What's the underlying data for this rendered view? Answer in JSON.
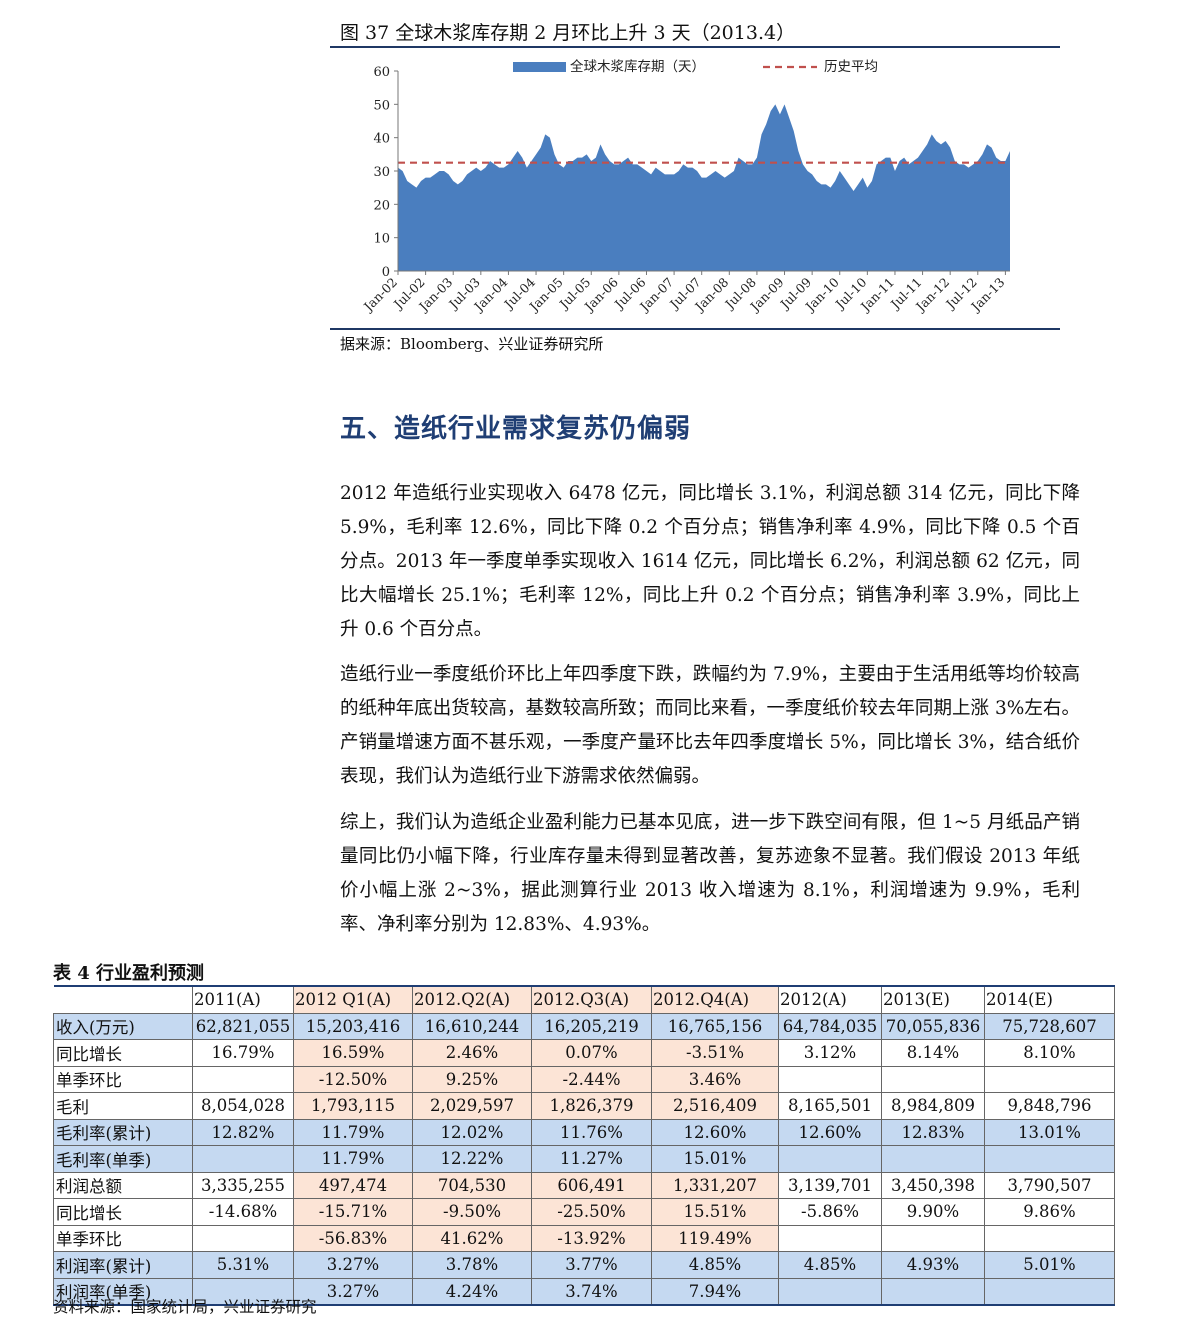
{
  "figure": {
    "title": "图 37  全球木浆库存期 2 月环比上升 3 天（2013.4）",
    "source": "据来源：Bloomberg、兴业证券研究所"
  },
  "chart_data": {
    "type": "area",
    "title": "图 37  全球木浆库存期 2 月环比上升 3 天（2013.4）",
    "legend": [
      "全球木浆库存期（天）",
      "历史平均"
    ],
    "legend_position": "top",
    "ylim": [
      0,
      60
    ],
    "yticks": [
      0,
      10,
      20,
      30,
      40,
      50,
      60
    ],
    "xtick_labels": [
      "Jan-02",
      "Jul-02",
      "Jan-03",
      "Jul-03",
      "Jan-04",
      "Jul-04",
      "Jan-05",
      "Jul-05",
      "Jan-06",
      "Jul-06",
      "Jan-07",
      "Jul-07",
      "Jan-08",
      "Jul-08",
      "Jan-09",
      "Jul-09",
      "Jan-10",
      "Jul-10",
      "Jan-11",
      "Jul-11",
      "Jan-12",
      "Jul-12",
      "Jan-13"
    ],
    "grid": false,
    "colors": {
      "area": "#4a7ebf",
      "average": "#c0504d"
    },
    "series": [
      {
        "name": "全球木浆库存期（天）",
        "x": [
          "2002-01",
          "2002-02",
          "2002-03",
          "2002-04",
          "2002-05",
          "2002-06",
          "2002-07",
          "2002-08",
          "2002-09",
          "2002-10",
          "2002-11",
          "2002-12",
          "2003-01",
          "2003-02",
          "2003-03",
          "2003-04",
          "2003-05",
          "2003-06",
          "2003-07",
          "2003-08",
          "2003-09",
          "2003-10",
          "2003-11",
          "2003-12",
          "2004-01",
          "2004-02",
          "2004-03",
          "2004-04",
          "2004-05",
          "2004-06",
          "2004-07",
          "2004-08",
          "2004-09",
          "2004-10",
          "2004-11",
          "2004-12",
          "2005-01",
          "2005-02",
          "2005-03",
          "2005-04",
          "2005-05",
          "2005-06",
          "2005-07",
          "2005-08",
          "2005-09",
          "2005-10",
          "2005-11",
          "2005-12",
          "2006-01",
          "2006-02",
          "2006-03",
          "2006-04",
          "2006-05",
          "2006-06",
          "2006-07",
          "2006-08",
          "2006-09",
          "2006-10",
          "2006-11",
          "2006-12",
          "2007-01",
          "2007-02",
          "2007-03",
          "2007-04",
          "2007-05",
          "2007-06",
          "2007-07",
          "2007-08",
          "2007-09",
          "2007-10",
          "2007-11",
          "2007-12",
          "2008-01",
          "2008-02",
          "2008-03",
          "2008-04",
          "2008-05",
          "2008-06",
          "2008-07",
          "2008-08",
          "2008-09",
          "2008-10",
          "2008-11",
          "2008-12",
          "2009-01",
          "2009-02",
          "2009-03",
          "2009-04",
          "2009-05",
          "2009-06",
          "2009-07",
          "2009-08",
          "2009-09",
          "2009-10",
          "2009-11",
          "2009-12",
          "2010-01",
          "2010-02",
          "2010-03",
          "2010-04",
          "2010-05",
          "2010-06",
          "2010-07",
          "2010-08",
          "2010-09",
          "2010-10",
          "2010-11",
          "2010-12",
          "2011-01",
          "2011-02",
          "2011-03",
          "2011-04",
          "2011-05",
          "2011-06",
          "2011-07",
          "2011-08",
          "2011-09",
          "2011-10",
          "2011-11",
          "2011-12",
          "2012-01",
          "2012-02",
          "2012-03",
          "2012-04",
          "2012-05",
          "2012-06",
          "2012-07",
          "2012-08",
          "2012-09",
          "2012-10",
          "2012-11",
          "2012-12",
          "2013-01",
          "2013-02"
        ],
        "values": [
          31,
          30,
          27,
          26,
          25,
          27,
          28,
          28,
          29,
          30,
          30,
          29,
          27,
          26,
          27,
          29,
          30,
          31,
          30,
          31,
          33,
          32,
          31,
          31,
          32,
          34,
          36,
          34,
          31,
          33,
          35,
          37,
          41,
          40,
          35,
          32,
          31,
          33,
          33,
          34,
          34,
          35,
          33,
          34,
          38,
          35,
          33,
          32,
          32,
          33,
          34,
          32,
          32,
          31,
          30,
          29,
          31,
          30,
          29,
          29,
          29,
          30,
          32,
          31,
          31,
          30,
          28,
          28,
          29,
          30,
          29,
          28,
          29,
          30,
          34,
          33,
          32,
          32,
          34,
          41,
          44,
          48,
          50,
          47,
          50,
          46,
          42,
          36,
          32,
          30,
          29,
          27,
          26,
          26,
          25,
          27,
          30,
          28,
          26,
          24,
          26,
          28,
          25,
          27,
          32,
          33,
          34,
          34,
          30,
          33,
          34,
          32,
          33,
          34,
          36,
          38,
          41,
          39,
          38,
          39,
          37,
          33,
          32,
          32,
          31,
          32,
          33,
          35,
          38,
          37,
          34,
          33,
          33,
          36
        ]
      },
      {
        "name": "历史平均",
        "value": 32.5
      }
    ]
  },
  "section": {
    "heading": "五、造纸行业需求复苏仍偏弱",
    "paragraphs": [
      "2012 年造纸行业实现收入 6478 亿元，同比增长 3.1%，利润总额 314 亿元，同比下降 5.9%，毛利率 12.6%，同比下降 0.2 个百分点；销售净利率 4.9%，同比下降 0.5 个百分点。2013 年一季度单季实现收入 1614 亿元，同比增长 6.2%，利润总额 62 亿元，同比大幅增长 25.1%；毛利率 12%，同比上升 0.2 个百分点；销售净利率 3.9%，同比上升 0.6 个百分点。",
      "造纸行业一季度纸价环比上年四季度下跌，跌幅约为 7.9%，主要由于生活用纸等均价较高的纸种年底出货较高，基数较高所致；而同比来看，一季度纸价较去年同期上涨 3%左右。产销量增速方面不甚乐观，一季度产量环比去年四季度增长 5%，同比增长 3%，结合纸价表现，我们认为造纸行业下游需求依然偏弱。",
      "综上，我们认为造纸企业盈利能力已基本见底，进一步下跌空间有限，但 1~5 月纸品产销量同比仍小幅下降，行业库存量未得到显著改善，复苏迹象不显著。我们假设 2013 年纸价小幅上涨 2~3%，据此测算行业 2013 收入增速为 8.1%，利润增速为 9.9%，毛利率、净利率分别为 12.83%、4.93%。"
    ]
  },
  "table": {
    "title": "表 4  行业盈利预测",
    "source": "资料来源：国家统计局，兴业证券研究",
    "headers": [
      "",
      "2011(A)",
      "2012 Q1(A)",
      "2012.Q2(A)",
      "2012.Q3(A)",
      "2012.Q4(A)",
      "2012(A)",
      "2013(E)",
      "2014(E)"
    ],
    "rows": [
      {
        "blue": true,
        "cells": [
          "收入(万元)",
          "62,821,055",
          "15,203,416",
          "16,610,244",
          "16,205,219",
          "16,765,156",
          "64,784,035",
          "70,055,836",
          "75,728,607"
        ]
      },
      {
        "blue": false,
        "cells": [
          "同比增长",
          "16.79%",
          "16.59%",
          "2.46%",
          "0.07%",
          "-3.51%",
          "3.12%",
          "8.14%",
          "8.10%"
        ]
      },
      {
        "blue": false,
        "cells": [
          "单季环比",
          "",
          "-12.50%",
          "9.25%",
          "-2.44%",
          "3.46%",
          "",
          "",
          ""
        ]
      },
      {
        "blue": false,
        "cells": [
          "毛利",
          "8,054,028",
          "1,793,115",
          "2,029,597",
          "1,826,379",
          "2,516,409",
          "8,165,501",
          "8,984,809",
          "9,848,796"
        ]
      },
      {
        "blue": true,
        "cells": [
          "毛利率(累计)",
          "12.82%",
          "11.79%",
          "12.02%",
          "11.76%",
          "12.60%",
          "12.60%",
          "12.83%",
          "13.01%"
        ]
      },
      {
        "blue": true,
        "cells": [
          "毛利率(单季)",
          "",
          "11.79%",
          "12.22%",
          "11.27%",
          "15.01%",
          "",
          "",
          ""
        ]
      },
      {
        "blue": false,
        "cells": [
          "利润总额",
          "3,335,255",
          "497,474",
          "704,530",
          "606,491",
          "1,331,207",
          "3,139,701",
          "3,450,398",
          "3,790,507"
        ]
      },
      {
        "blue": false,
        "cells": [
          "同比增长",
          "-14.68%",
          "-15.71%",
          "-9.50%",
          "-25.50%",
          "15.51%",
          "-5.86%",
          "9.90%",
          "9.86%"
        ]
      },
      {
        "blue": false,
        "cells": [
          "单季环比",
          "",
          "-56.83%",
          "41.62%",
          "-13.92%",
          "119.49%",
          "",
          "",
          ""
        ]
      },
      {
        "blue": true,
        "cells": [
          "利润率(累计)",
          "5.31%",
          "3.27%",
          "3.78%",
          "3.77%",
          "4.85%",
          "4.85%",
          "4.93%",
          "5.01%"
        ]
      },
      {
        "blue": true,
        "cells": [
          "利润率(单季)",
          "",
          "3.27%",
          "4.24%",
          "3.74%",
          "7.94%",
          "",
          "",
          ""
        ]
      }
    ]
  }
}
